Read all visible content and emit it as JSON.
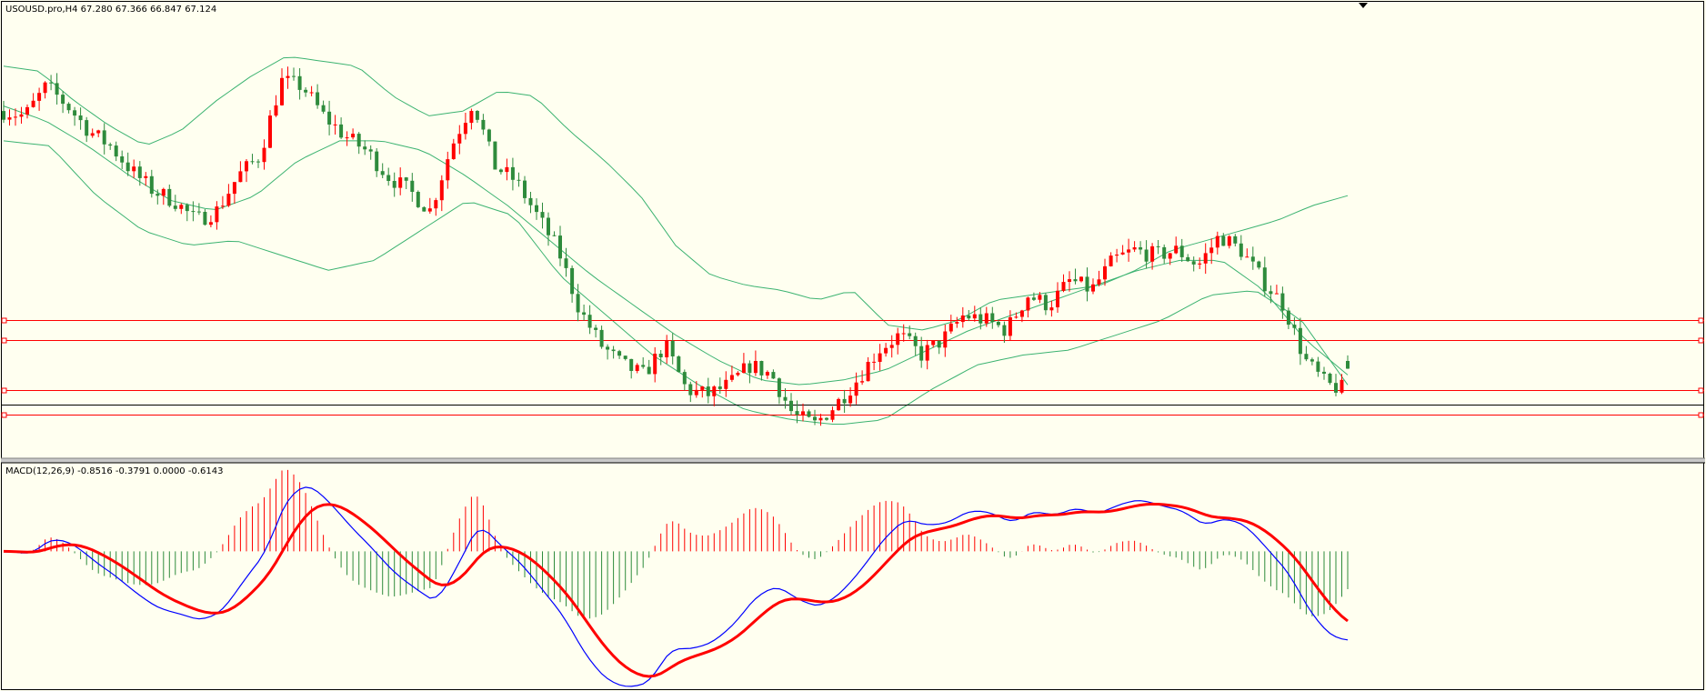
{
  "window": {
    "symbol_header": "USOUSD.pro,H4  67.280 67.366 66.847 67.124"
  },
  "indicator": {
    "header": "MACD(12,26,9) -0.8516 -0.3791 0.0000 -0.6143"
  },
  "colors": {
    "background": "#fffff0",
    "frame": "#000000",
    "bull_candle": "#ff0000",
    "bear_candle": "#2e8b3c",
    "bollinger": "#3cb371",
    "hline": "#ff0000",
    "current_price_line": "#000000",
    "macd_line": "#0000ff",
    "signal_line": "#ff0000",
    "hist_positive": "#ff0000",
    "hist_negative": "#2e8b3c"
  },
  "icons": {
    "shift_marker": "triangle-down-icon"
  },
  "chart_data": [
    {
      "type": "candlestick",
      "title": "USOUSD.pro,H4",
      "ohlc_last": {
        "open": 67.28,
        "high": 67.366,
        "low": 66.847,
        "close": 67.124
      },
      "y_range": [
        65.4,
        74.2
      ],
      "price_points_y": [
        72.3,
        72.2,
        72.8,
        72.4,
        71.9,
        71.6,
        71.1,
        70.7,
        70.5,
        70.1,
        70.3,
        71.0,
        71.4,
        72.9,
        72.8,
        72.2,
        71.8,
        71.5,
        71.0,
        70.7,
        70.3,
        71.6,
        72.5,
        71.2,
        70.9,
        70.2,
        69.5,
        68.3,
        67.6,
        67.2,
        67.0,
        67.6,
        66.7,
        66.6,
        66.8,
        67.2,
        67.0,
        66.2,
        66.0,
        66.4,
        66.9,
        67.5,
        67.8,
        67.4,
        67.7,
        68.2,
        68.1,
        67.9,
        68.6,
        68.4,
        68.9,
        68.7,
        69.3,
        69.5,
        69.4,
        69.5,
        69.2,
        69.8,
        69.5,
        68.9,
        68.4,
        67.3,
        66.8,
        66.7
      ],
      "series": [
        {
          "name": "",
          "kind": "bollinger_upper",
          "values": [
            73.2,
            73.1,
            72.5,
            72.0,
            71.6,
            71.9,
            72.5,
            73.0,
            73.4,
            73.3,
            73.2,
            72.6,
            72.2,
            72.3,
            72.7,
            72.6,
            71.9,
            71.3,
            70.6,
            69.6,
            69.0,
            68.8,
            68.7,
            68.5,
            68.7,
            68.0,
            67.9,
            68.1,
            68.5,
            68.6,
            68.7,
            68.8,
            69.1,
            69.5,
            69.7,
            69.9,
            70.1,
            70.4,
            70.6
          ]
        },
        {
          "name": "",
          "kind": "bollinger_middle",
          "values": [
            72.4,
            72.1,
            71.6,
            71.0,
            70.5,
            70.3,
            70.6,
            71.3,
            71.7,
            71.7,
            71.5,
            71.0,
            70.4,
            69.7,
            69.0,
            68.4,
            67.8,
            67.3,
            66.9,
            66.8,
            66.9,
            67.1,
            67.5,
            67.9,
            68.2,
            68.5,
            68.8,
            69.1,
            69.3,
            69.3,
            68.7,
            67.7,
            67.0
          ]
        },
        {
          "name": "",
          "kind": "bollinger_lower",
          "values": [
            71.7,
            71.6,
            70.6,
            69.9,
            69.6,
            69.7,
            69.4,
            69.1,
            69.3,
            69.9,
            70.5,
            70.2,
            69.0,
            68.2,
            67.4,
            66.8,
            66.3,
            66.1,
            66.0,
            66.1,
            66.7,
            67.2,
            67.4,
            67.5,
            67.8,
            68.1,
            68.6,
            68.7,
            68.1,
            66.8
          ]
        }
      ],
      "horizontal_levels": [
        68.1,
        67.7,
        66.7,
        66.2,
        66.4
      ]
    },
    {
      "type": "line",
      "title": "MACD(12,26,9)",
      "values": {
        "macd": -0.8516,
        "signal": -0.3791,
        "level": 0.0,
        "histogram": -0.6143
      },
      "y_range": [
        -1.3,
        0.8
      ],
      "series": [
        {
          "name": "",
          "kind": "histogram"
        },
        {
          "name": "",
          "kind": "macd_line"
        },
        {
          "name": "",
          "kind": "signal_line"
        }
      ]
    }
  ]
}
